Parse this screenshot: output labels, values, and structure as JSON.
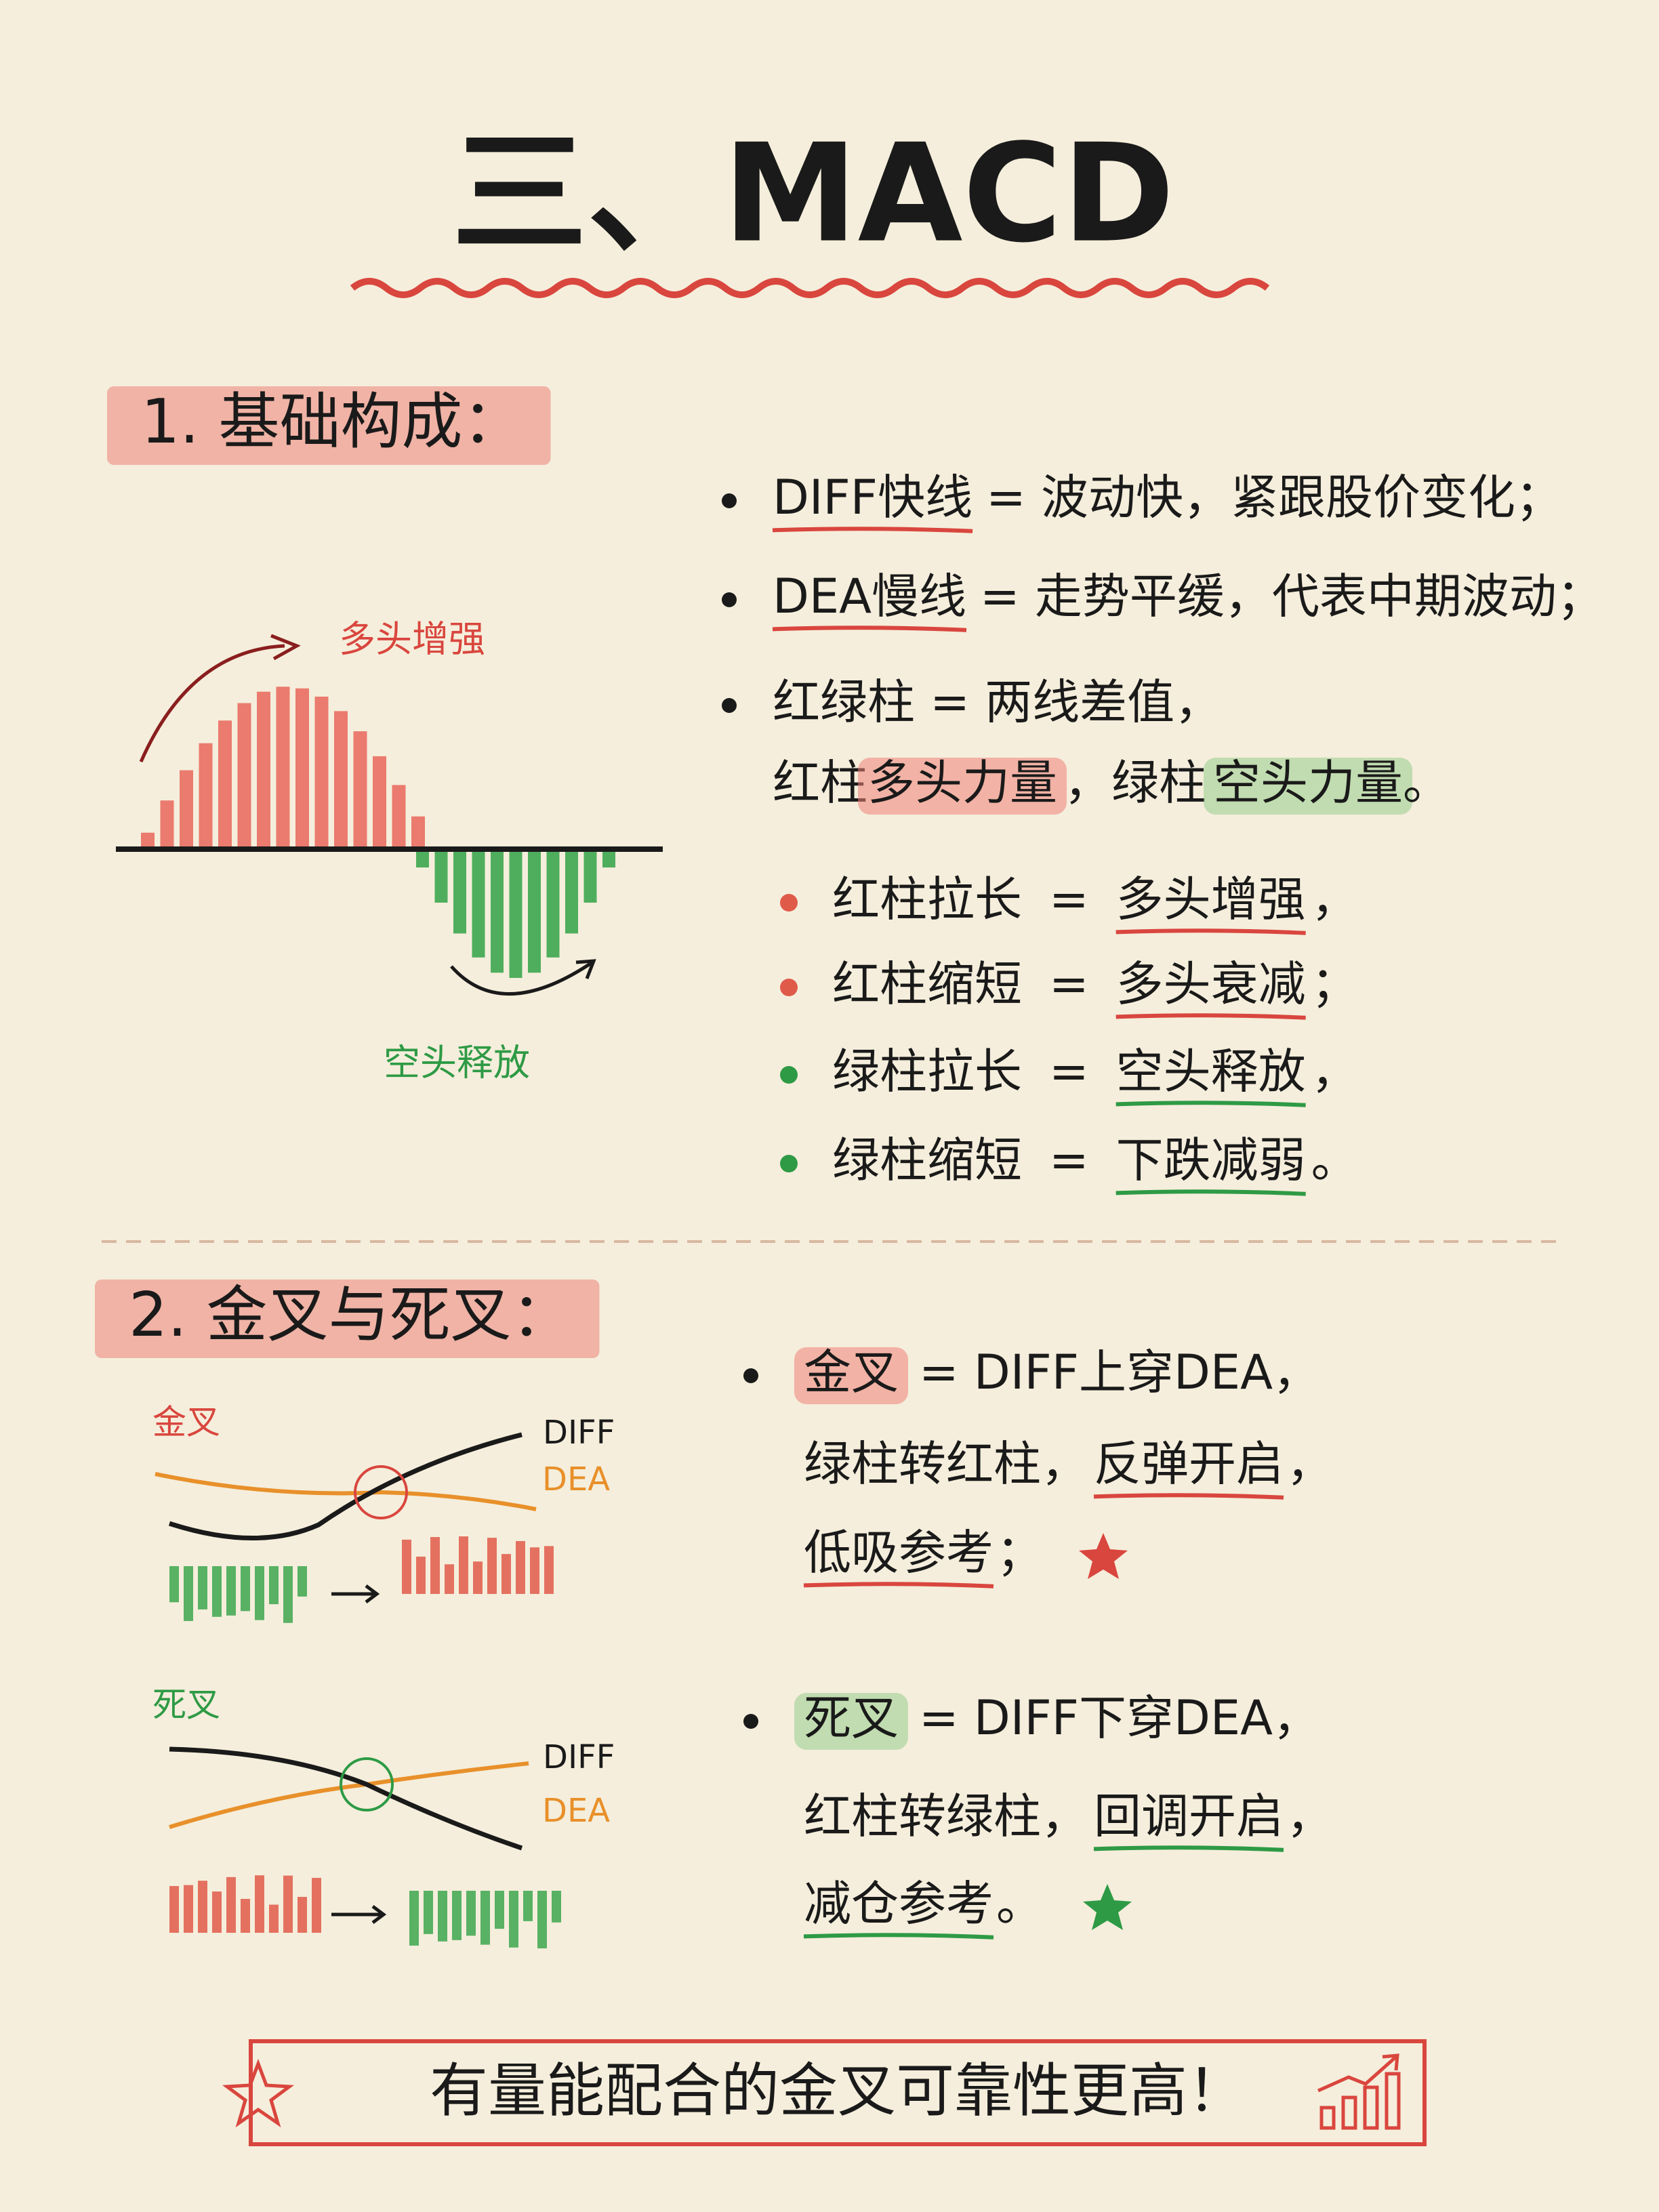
{
  "title": "三、MACD",
  "section1": {
    "heading": "1. 基础构成：",
    "items": [
      {
        "term": "DIFF快线",
        "text": "= 波动快，紧跟股价变化；"
      },
      {
        "term": "DEA慢线",
        "text": "= 走势平缓，代表中期波动；"
      }
    ],
    "bars": {
      "line1": "红绿柱 = 两线差值，",
      "red": "红柱",
      "red_power": "多头力量",
      "comma": "，绿柱",
      "green_power": "空头力量",
      "end": "。"
    },
    "rules": [
      {
        "term": "红柱拉长",
        "eq": "=",
        "result": "多头增强",
        "end": "，"
      },
      {
        "term": "红柱缩短",
        "eq": "=",
        "result": "多头衰减",
        "end": "；"
      },
      {
        "term": "绿柱拉长",
        "eq": "=",
        "result": "空头释放",
        "end": "，"
      },
      {
        "term": "绿柱缩短",
        "eq": "=",
        "result": "下跌减弱",
        "end": "。"
      }
    ],
    "diagram": {
      "up_label": "多头增强",
      "down_label": "空头释放"
    }
  },
  "section2": {
    "heading": "2. 金叉与死叉：",
    "crosses": [
      {
        "diagram_label": "金叉",
        "diff": "DIFF",
        "dea": "DEA",
        "name": "金叉",
        "line1": "= DIFF上穿DEA，",
        "line2": "绿柱转红柱，",
        "signal": "反弹开启",
        "sep": "，",
        "advice": "低吸参考",
        "end": "；"
      },
      {
        "diagram_label": "死叉",
        "diff": "DIFF",
        "dea": "DEA",
        "name": "死叉",
        "line1": "= DIFF下穿DEA，",
        "line2": "红柱转绿柱，",
        "signal": "回调开启",
        "sep": "，",
        "advice": "减仓参考",
        "end": "。"
      }
    ]
  },
  "footer": "有量能配合的金叉可靠性更高！"
}
